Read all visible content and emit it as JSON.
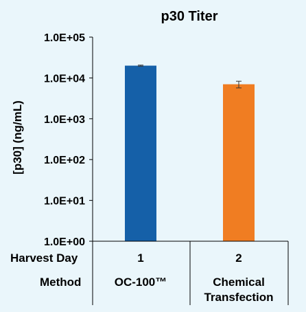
{
  "chart_data": {
    "type": "bar",
    "title": "p30 Titer",
    "ylabel": "[p30] (ng/mL)",
    "yscale": "log",
    "ylim": [
      1,
      100000
    ],
    "y_tick_labels": [
      "1.0E+00",
      "1.0E+01",
      "1.0E+02",
      "1.0E+03",
      "1.0E+04",
      "1.0E+05"
    ],
    "categories": [
      "1",
      "2"
    ],
    "values": [
      20000,
      7000
    ],
    "error": [
      600,
      1300
    ],
    "colors": [
      "#1560a8",
      "#f07d22"
    ],
    "grid": false,
    "table": {
      "row_labels": [
        "Harvest Day",
        "Method"
      ],
      "harvest_day": [
        "1",
        "2"
      ],
      "method": [
        [
          "OC-100™"
        ],
        [
          "Chemical",
          "Transfection"
        ]
      ]
    }
  }
}
